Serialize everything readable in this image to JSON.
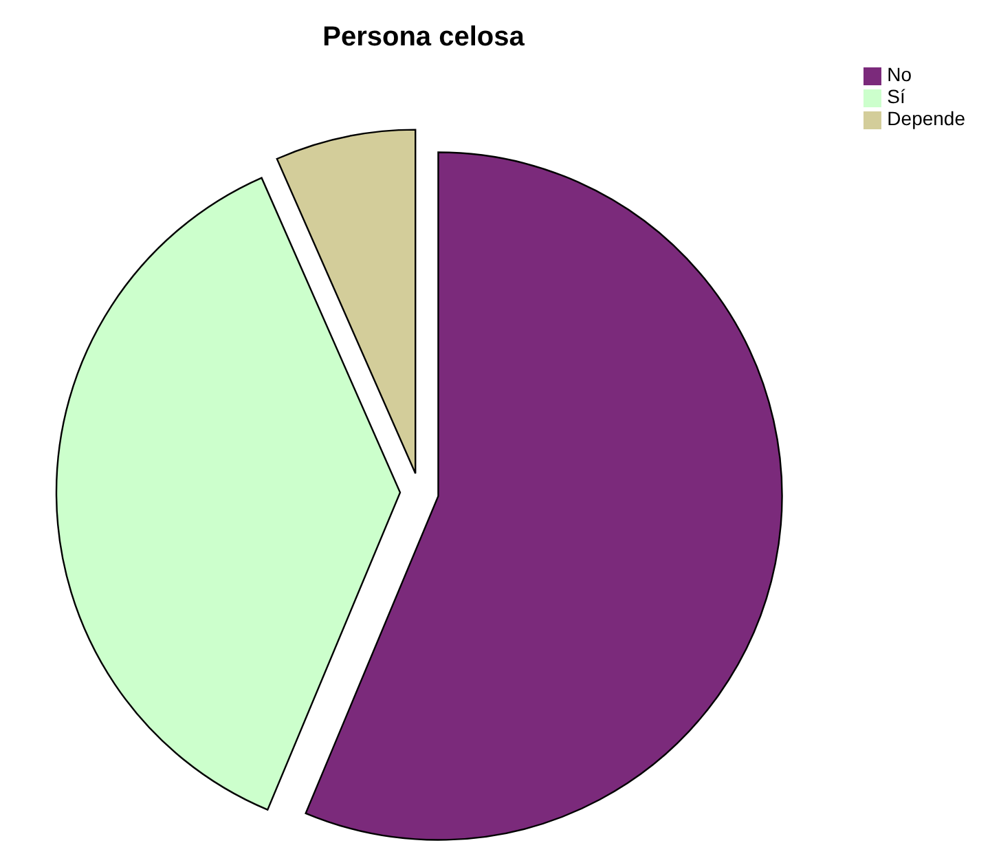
{
  "chart_data": {
    "type": "pie",
    "title": "Persona celosa",
    "categories": [
      "No",
      "Sí",
      "Depende"
    ],
    "values": [
      56.3,
      37.1,
      6.6
    ],
    "colors": [
      "#7b2a7b",
      "#ccffcc",
      "#d3cd9a"
    ],
    "legend": "top right"
  }
}
